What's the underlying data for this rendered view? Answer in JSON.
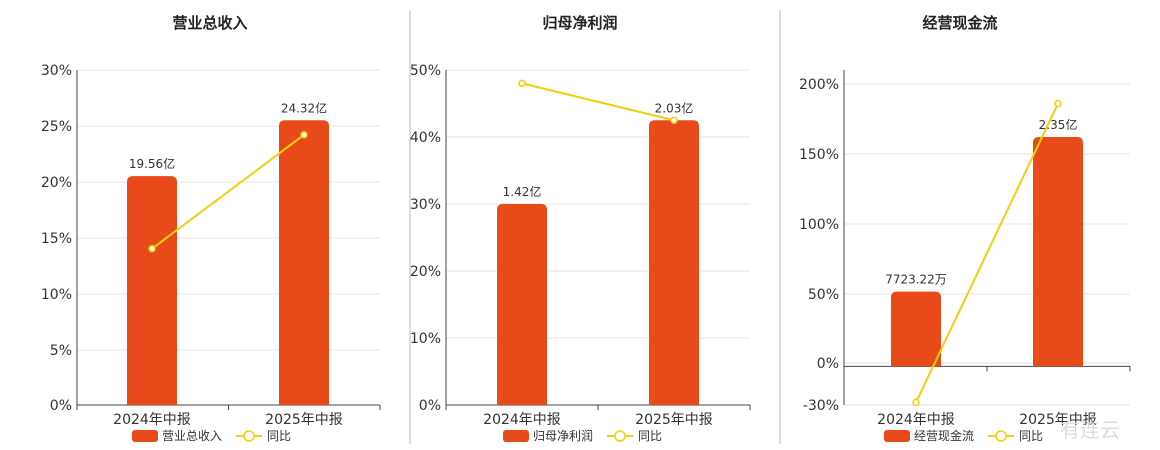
{
  "colors": {
    "bar": "#E84A1A",
    "line": "#F2CF0A",
    "grid": "#E6E6E6",
    "axis": "#444444",
    "divider": "#BBBBBB"
  },
  "watermark": "有连云",
  "chart_data": [
    {
      "type": "bar",
      "title": "营业总收入",
      "categories": [
        "2024年中报",
        "2025年中报"
      ],
      "series": [
        {
          "name": "营业总收入",
          "type": "bar",
          "value_labels": [
            "19.56亿",
            "24.32亿"
          ],
          "values_pct_axis": [
            20.5,
            25.5
          ]
        },
        {
          "name": "同比",
          "type": "line",
          "values": [
            14.0,
            24.2
          ]
        }
      ],
      "y_ticks": [
        "30%",
        "25%",
        "20%",
        "15%",
        "10%",
        "5%",
        "0%"
      ],
      "ylim": [
        0,
        30
      ],
      "grid": true,
      "legend": "bottom"
    },
    {
      "type": "bar",
      "title": "归母净利润",
      "categories": [
        "2024年中报",
        "2025年中报"
      ],
      "series": [
        {
          "name": "归母净利润",
          "type": "bar",
          "value_labels": [
            "1.42亿",
            "2.03亿"
          ],
          "values_pct_axis": [
            30,
            42.5
          ]
        },
        {
          "name": "同比",
          "type": "line",
          "values": [
            48.0,
            42.5
          ]
        }
      ],
      "y_ticks": [
        "50%",
        "40%",
        "30%",
        "20%",
        "10%",
        "0%"
      ],
      "ylim": [
        0,
        50
      ],
      "grid": true,
      "legend": "bottom"
    },
    {
      "type": "bar",
      "title": "经营现金流",
      "categories": [
        "2024年中报",
        "2025年中报"
      ],
      "series": [
        {
          "name": "经营现金流",
          "type": "bar",
          "value_labels": [
            "7723.22万",
            "2.35亿"
          ],
          "values_pct_axis": [
            58,
            178
          ]
        },
        {
          "name": "同比",
          "type": "line",
          "values": [
            -28,
            204
          ]
        }
      ],
      "y_ticks": [
        "200%",
        "150%",
        "100%",
        "50%",
        "0%",
        "-30%"
      ],
      "ylim": [
        -30,
        230
      ],
      "grid": true,
      "legend": "bottom"
    }
  ]
}
